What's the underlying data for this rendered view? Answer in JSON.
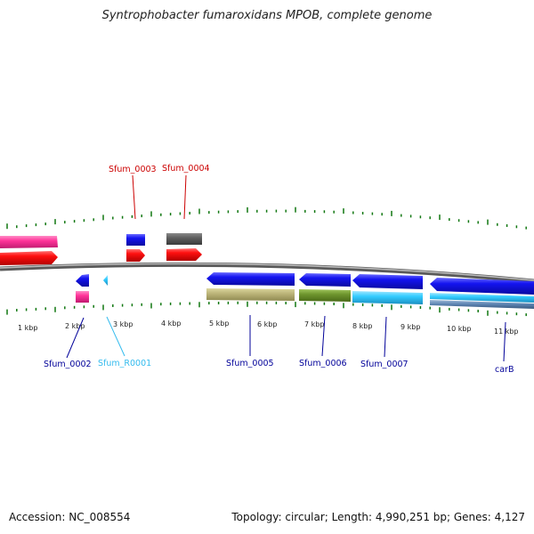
{
  "title": "Syntrophobacter fumaroxidans MPOB, complete genome",
  "footer": {
    "accession": "Accession: NC_008554",
    "stats": "Topology: circular; Length: 4,990,251 bp; Genes: 4,127"
  },
  "kbp_labels": [
    "1 kbp",
    "2 kbp",
    "3 kbp",
    "4 kbp",
    "5 kbp",
    "6 kbp",
    "7 kbp",
    "8 kbp",
    "9 kbp",
    "10 kbp",
    "11 kbp"
  ],
  "gene_labels": {
    "sfum_0002": "Sfum_0002",
    "sfum_r0001": "Sfum_R0001",
    "sfum_0003": "Sfum_0003",
    "sfum_0004": "Sfum_0004",
    "sfum_0005": "Sfum_0005",
    "sfum_0006": "Sfum_0006",
    "sfum_0007": "Sfum_0007",
    "carb": "carB"
  },
  "colors": {
    "cds": "#1010e6",
    "gene": "#ff1010",
    "rrna_trna": "#ff3399",
    "rna": "#33ccff",
    "backbone": "#808080",
    "ticks": "#117711",
    "label_top": "#cc0000",
    "label_bottom": "#000099",
    "label_rna": "#33bbee"
  }
}
